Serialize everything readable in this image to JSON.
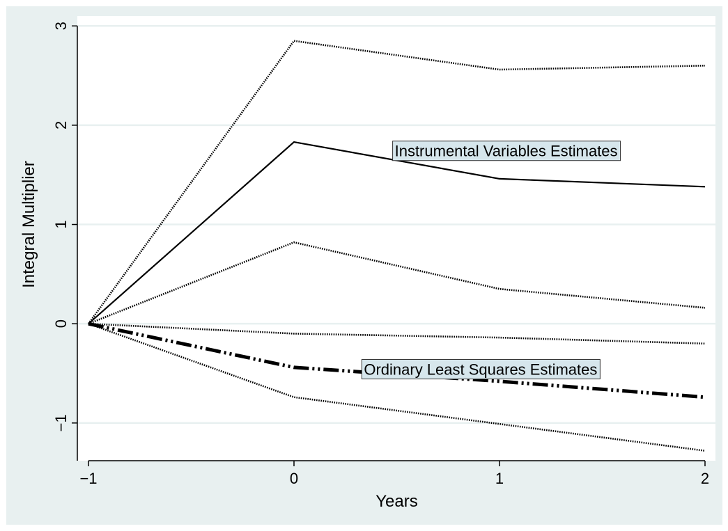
{
  "chart_data": {
    "type": "line",
    "title": "",
    "xlabel": "Years",
    "ylabel": "Integral Multiplier",
    "xlim": [
      -1,
      2
    ],
    "ylim": [
      -1.38,
      3.1
    ],
    "x_ticks": [
      -1,
      0,
      1,
      2
    ],
    "x_tick_labels": [
      "−1",
      "0",
      "1",
      "2"
    ],
    "y_ticks": [
      -1,
      0,
      1,
      2,
      3
    ],
    "y_tick_labels": [
      "−1",
      "0",
      "1",
      "2",
      "3"
    ],
    "grid": true,
    "legend": "none",
    "colors": {
      "background": "#e8f0f0",
      "plot_background": "#ffffff",
      "grid": "#e8f0f0",
      "line": "#000000",
      "label_box": "#d6e6ec"
    },
    "x": [
      -1,
      0,
      1,
      2
    ],
    "series": [
      {
        "name": "IV upper",
        "style": "dotted",
        "values": [
          0,
          2.85,
          2.56,
          2.6
        ]
      },
      {
        "name": "IV estimate",
        "style": "solid",
        "values": [
          0,
          1.83,
          1.46,
          1.38
        ]
      },
      {
        "name": "IV lower",
        "style": "dotted",
        "values": [
          0,
          0.82,
          0.35,
          0.16
        ]
      },
      {
        "name": "OLS upper",
        "style": "dotted",
        "values": [
          0,
          -0.1,
          -0.14,
          -0.2
        ]
      },
      {
        "name": "OLS estimate",
        "style": "long-dash-dot-dot",
        "values": [
          0,
          -0.44,
          -0.58,
          -0.74
        ]
      },
      {
        "name": "OLS lower",
        "style": "dotted",
        "values": [
          0,
          -0.74,
          -1.01,
          -1.28
        ]
      }
    ],
    "annotations": [
      {
        "text": "Instrumental Variables Estimates",
        "x": 0.48,
        "y": 1.84
      },
      {
        "text": "Ordinary Least Squares Estimates",
        "x": 0.33,
        "y": -0.36
      }
    ]
  }
}
